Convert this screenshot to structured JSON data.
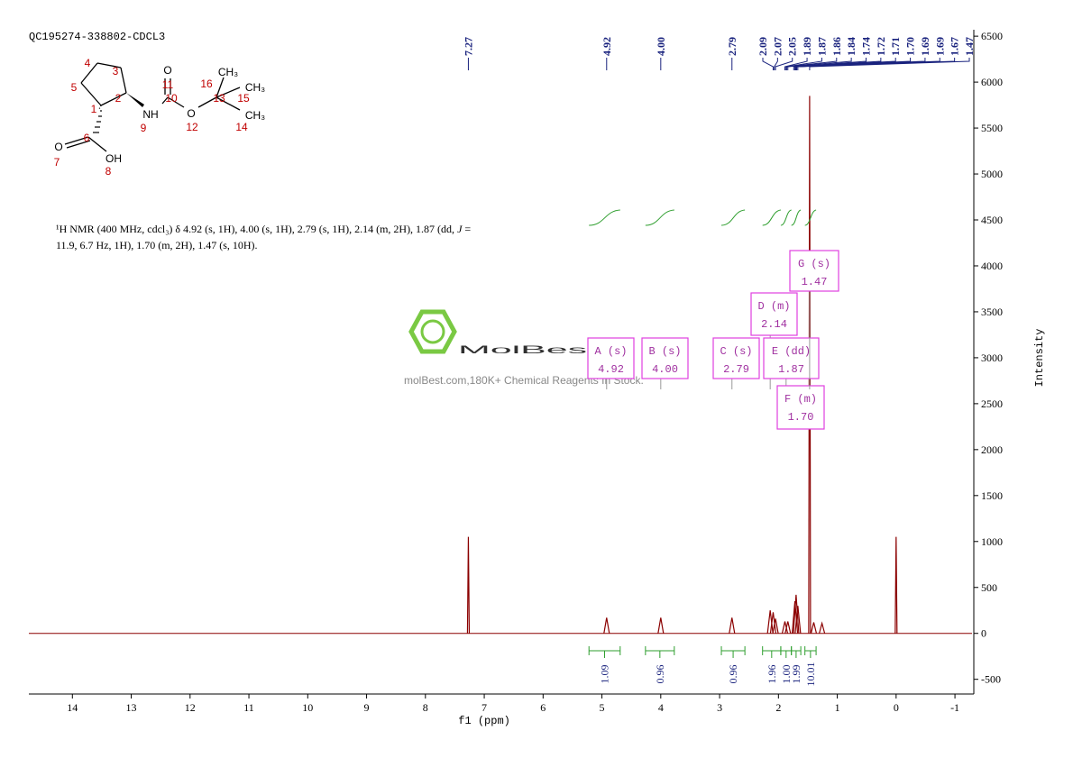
{
  "header": "QC195274-338802-CDCL3",
  "description": {
    "line1": [
      "¹H NMR (400 MHz, cdcl₃) δ 4.92 (s, 1H), 4.00 (s, 1H), 2.79 (s, 1H), 2.14 (m, 2H), 1.87 (dd, ",
      "J",
      " ="
    ],
    "line2": [
      "11.9, 6.7 Hz, 1H), 1.70 (m, 2H), 1.47 (s, 10H)."
    ]
  },
  "structure": {
    "atoms": [
      "O",
      "NH",
      "O",
      "CH₃",
      "CH₃",
      "CH₃",
      "O",
      "OH"
    ],
    "numbers": [
      "1",
      "2",
      "3",
      "4",
      "5",
      "6",
      "7",
      "8",
      "9",
      "10",
      "11",
      "12",
      "13",
      "14",
      "15",
      "16"
    ]
  },
  "watermark": {
    "brand": "MolBest",
    "tagline": "molBest.com,180K+ Chemical Reagents In Stock."
  },
  "chart_data": {
    "type": "nmr",
    "x_label": "f1 (ppm)",
    "y_label": "Intensity",
    "xlim": [
      14.74,
      -1.29
    ],
    "ylim": [
      -660,
      6570
    ],
    "xticks": [
      14,
      13,
      12,
      11,
      10,
      9,
      8,
      7,
      6,
      5,
      4,
      3,
      2,
      1,
      0,
      -1
    ],
    "yticks": [
      -500,
      0,
      500,
      1000,
      1500,
      2000,
      2500,
      3000,
      3500,
      4000,
      4500,
      5000,
      5500,
      6000,
      6500
    ],
    "color": "#8b0000",
    "peaks": {
      "ppm": [
        7.27,
        4.92,
        4.0,
        2.79,
        2.14,
        2.09,
        2.05,
        1.89,
        1.84,
        1.72,
        1.7,
        1.67,
        1.47,
        1.4,
        1.26,
        0
      ],
      "heights": [
        1050,
        170,
        170,
        170,
        250,
        230,
        160,
        130,
        130,
        350,
        420,
        300,
        5850,
        120,
        110,
        1050
      ]
    },
    "peak_labels": [
      7.27,
      4.92,
      {
        "value": 4.0,
        "label": "4.00"
      },
      2.79,
      2.09,
      2.07,
      2.05,
      1.89,
      1.87,
      1.86,
      1.84,
      1.74,
      1.72,
      1.71,
      {
        "value": 1.7,
        "label": "1.70"
      },
      1.69,
      1.69,
      1.67,
      1.47
    ],
    "integrals": [
      {
        "range": [
          5.22,
          4.69
        ],
        "value": 1.09
      },
      {
        "range": [
          4.26,
          3.77
        ],
        "value": 0.96
      },
      {
        "range": [
          2.97,
          2.57
        ],
        "value": 0.96
      },
      {
        "range": [
          2.27,
          1.96
        ],
        "value": 1.96
      },
      {
        "range": [
          1.96,
          1.78
        ],
        "value": {
          "value": 1.0,
          "label": "1.00"
        }
      },
      {
        "range": [
          1.78,
          1.62
        ],
        "value": 1.99
      },
      {
        "range": [
          1.55,
          1.36
        ],
        "value": 10.01
      }
    ],
    "multiplets": [
      {
        "label": "A (s)",
        "shift": 4.92
      },
      {
        "label": "B (s)",
        "shift": {
          "value": 4.0,
          "label": "4.00"
        }
      },
      {
        "label": "C (s)",
        "shift": 2.79
      },
      {
        "label": "D (m)",
        "shift": 2.14
      },
      {
        "label": "E (dd)",
        "shift": 1.87
      },
      {
        "label": "F (m)",
        "shift": {
          "value": 1.7,
          "label": "1.70"
        }
      },
      {
        "label": "G (s)",
        "shift": 1.47
      }
    ]
  }
}
